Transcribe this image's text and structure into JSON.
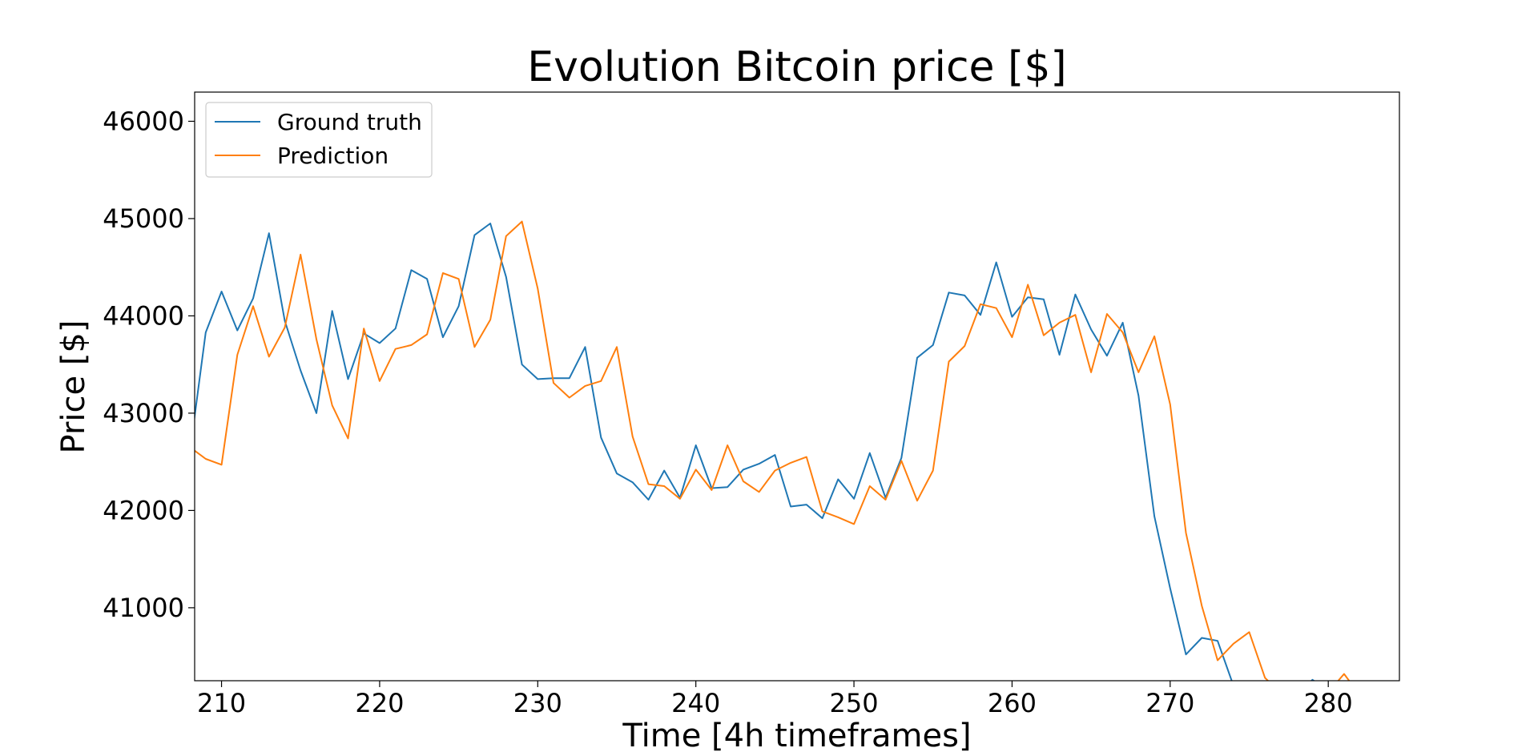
{
  "chart_data": {
    "type": "line",
    "title": "Evolution Bitcoin price [$]",
    "xlabel": "Time [4h timeframes]",
    "ylabel": "Price [$]",
    "xlim": [
      208.3,
      284.5
    ],
    "ylim": [
      40250,
      46300
    ],
    "xticks": [
      210,
      220,
      230,
      240,
      250,
      260,
      270,
      280
    ],
    "yticks": [
      41000,
      42000,
      43000,
      44000,
      45000,
      46000
    ],
    "grid": false,
    "legend": "top-left",
    "x": [
      208,
      209,
      210,
      211,
      212,
      213,
      214,
      215,
      216,
      217,
      218,
      219,
      220,
      221,
      222,
      223,
      224,
      225,
      226,
      227,
      228,
      229,
      230,
      231,
      232,
      233,
      234,
      235,
      236,
      237,
      238,
      239,
      240,
      241,
      242,
      243,
      244,
      245,
      246,
      247,
      248,
      249,
      250,
      251,
      252,
      253,
      254,
      255,
      256,
      257,
      258,
      259,
      260,
      261,
      262,
      263,
      264,
      265,
      266,
      267,
      268,
      269,
      270,
      271,
      272,
      273,
      274,
      275,
      276,
      277,
      278,
      279,
      280,
      281,
      282
    ],
    "series": [
      {
        "name": "Ground truth",
        "color": "#1f77b4",
        "values": [
          42600,
          43830,
          44250,
          43850,
          44180,
          44850,
          43950,
          43440,
          43000,
          44050,
          43350,
          43820,
          43720,
          43870,
          44470,
          44380,
          43780,
          44100,
          44830,
          44950,
          44400,
          43500,
          43350,
          43360,
          43360,
          43680,
          42750,
          42380,
          42290,
          42110,
          42410,
          42130,
          42670,
          42230,
          42240,
          42420,
          42480,
          42570,
          42040,
          42060,
          41920,
          42320,
          42120,
          42590,
          42130,
          42540,
          43570,
          43700,
          44240,
          44210,
          44010,
          44550,
          43990,
          44190,
          44170,
          43600,
          44220,
          43860,
          43590,
          43930,
          43180,
          41940,
          41200,
          40520,
          40690,
          40660,
          40200,
          40100,
          40000,
          40050,
          40100,
          40260,
          40150,
          40000,
          39950
        ]
      },
      {
        "name": "Prediction",
        "color": "#ff7f0e",
        "values": [
          42650,
          42530,
          42470,
          43600,
          44100,
          43580,
          43880,
          44630,
          43760,
          43080,
          42740,
          43870,
          43330,
          43660,
          43700,
          43810,
          44440,
          44380,
          43680,
          43960,
          44820,
          44970,
          44280,
          43310,
          43160,
          43280,
          43330,
          43680,
          42760,
          42270,
          42250,
          42120,
          42420,
          42210,
          42670,
          42300,
          42190,
          42410,
          42490,
          42550,
          41990,
          41930,
          41860,
          42250,
          42110,
          42510,
          42100,
          42410,
          43530,
          43690,
          44120,
          44080,
          43780,
          44320,
          43800,
          43930,
          44010,
          43420,
          44020,
          43830,
          43420,
          43790,
          43090,
          41770,
          41020,
          40460,
          40630,
          40750,
          40280,
          40120,
          40050,
          40100,
          40130,
          40320,
          40100
        ]
      }
    ]
  }
}
